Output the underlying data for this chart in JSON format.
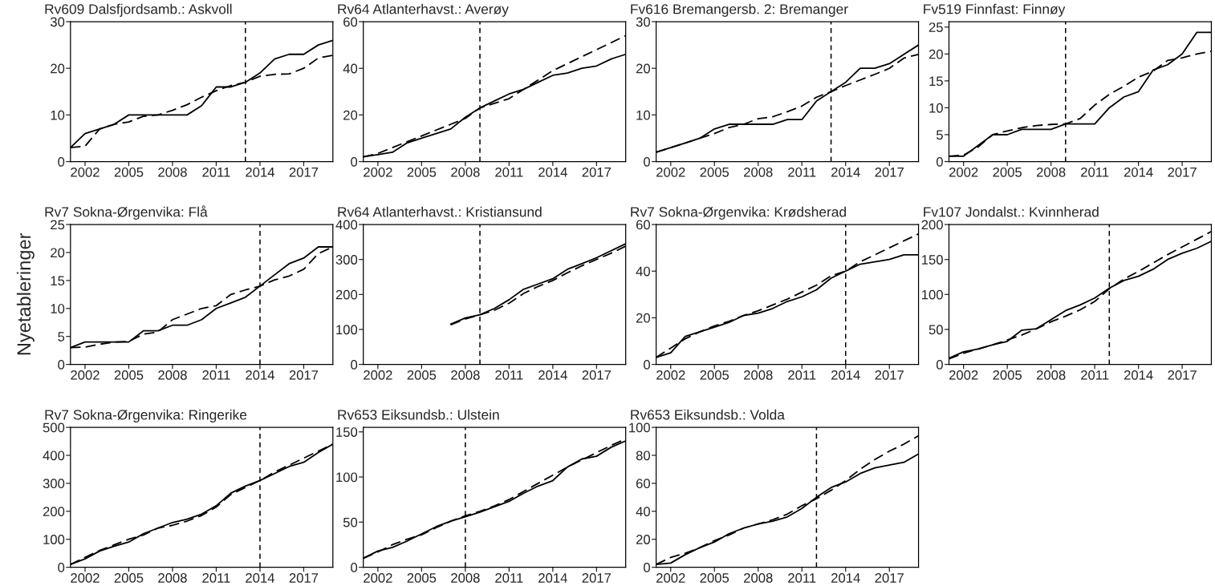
{
  "chart_data": [
    {
      "type": "line",
      "title": "Rv609 Dalsfjordsamb.: Askvoll",
      "x": [
        2001,
        2002,
        2003,
        2004,
        2005,
        2006,
        2007,
        2008,
        2009,
        2010,
        2011,
        2012,
        2013,
        2014,
        2015,
        2016,
        2017,
        2018,
        2019
      ],
      "xlim": [
        2001,
        2019
      ],
      "xticks": [
        2002,
        2005,
        2008,
        2011,
        2014,
        2017
      ],
      "ylim": [
        0,
        30
      ],
      "yticks": [
        0,
        10,
        20,
        30
      ],
      "series": [
        {
          "color": "#000000",
          "line_style": "solid",
          "values": [
            3,
            6,
            7,
            8,
            10,
            10,
            10,
            10,
            10,
            12,
            16,
            16,
            17,
            19,
            22,
            23,
            23,
            25,
            26
          ]
        },
        {
          "color": "#000000",
          "line_style": "dashed",
          "values": [
            3,
            3.3,
            7,
            8,
            8.5,
            9.7,
            10,
            11,
            12.2,
            13.8,
            15.2,
            16.3,
            17,
            18.3,
            18.7,
            18.8,
            20,
            22.2,
            22.8
          ]
        }
      ],
      "ref_lines": [
        {
          "axis": "x",
          "value": 2013,
          "line_style": "dashed",
          "color": "#000000"
        }
      ]
    },
    {
      "type": "line",
      "title": "Rv64 Atlanterhavst.: Averøy",
      "x": [
        2001,
        2002,
        2003,
        2004,
        2005,
        2006,
        2007,
        2008,
        2009,
        2010,
        2011,
        2012,
        2013,
        2014,
        2015,
        2016,
        2017,
        2018,
        2019
      ],
      "xlim": [
        2001,
        2019
      ],
      "xticks": [
        2002,
        2005,
        2008,
        2011,
        2014,
        2017
      ],
      "ylim": [
        0,
        60
      ],
      "yticks": [
        0,
        20,
        40,
        60
      ],
      "series": [
        {
          "color": "#000000",
          "line_style": "solid",
          "values": [
            2,
            3,
            4,
            8,
            10,
            12,
            14,
            19,
            23,
            26,
            29,
            31,
            34,
            37,
            38,
            40,
            41,
            44,
            46
          ]
        },
        {
          "color": "#000000",
          "line_style": "dashed",
          "values": [
            2,
            3.5,
            6,
            8.5,
            11,
            13.5,
            16,
            18.5,
            23,
            25,
            27,
            31,
            35,
            39,
            42,
            45,
            48,
            51,
            54
          ]
        }
      ],
      "ref_lines": [
        {
          "axis": "x",
          "value": 2009,
          "line_style": "dashed",
          "color": "#000000"
        }
      ]
    },
    {
      "type": "line",
      "title": "Fv616 Bremangersb. 2: Bremanger",
      "x": [
        2001,
        2002,
        2003,
        2004,
        2005,
        2006,
        2007,
        2008,
        2009,
        2010,
        2011,
        2012,
        2013,
        2014,
        2015,
        2016,
        2017,
        2018,
        2019
      ],
      "xlim": [
        2001,
        2019
      ],
      "xticks": [
        2002,
        2005,
        2008,
        2011,
        2014,
        2017
      ],
      "ylim": [
        0,
        30
      ],
      "yticks": [
        0,
        10,
        20,
        30
      ],
      "series": [
        {
          "color": "#000000",
          "line_style": "solid",
          "values": [
            2,
            3,
            4,
            5,
            7,
            8,
            8,
            8,
            8,
            9,
            9,
            13,
            15,
            17,
            20,
            20,
            21,
            23,
            25
          ]
        },
        {
          "color": "#000000",
          "line_style": "dashed",
          "values": [
            2,
            3,
            4,
            5,
            6,
            7.3,
            8,
            9.2,
            9.6,
            10.7,
            11.9,
            13.8,
            15,
            16.3,
            17.5,
            18.7,
            20,
            22.2,
            23
          ]
        }
      ],
      "ref_lines": [
        {
          "axis": "x",
          "value": 2013,
          "line_style": "dashed",
          "color": "#000000"
        }
      ]
    },
    {
      "type": "line",
      "title": "Fv519 Finnfast: Finnøy",
      "x": [
        2001,
        2002,
        2003,
        2004,
        2005,
        2006,
        2007,
        2008,
        2009,
        2010,
        2011,
        2012,
        2013,
        2014,
        2015,
        2016,
        2017,
        2018,
        2019
      ],
      "xlim": [
        2001,
        2019
      ],
      "xticks": [
        2002,
        2005,
        2008,
        2011,
        2014,
        2017
      ],
      "ylim": [
        0,
        26
      ],
      "yticks": [
        0,
        5,
        10,
        15,
        20,
        25
      ],
      "series": [
        {
          "color": "#000000",
          "line_style": "solid",
          "values": [
            1,
            1,
            3,
            5,
            5,
            6,
            6,
            6,
            7,
            7,
            7,
            10,
            12,
            13,
            17,
            18,
            20,
            24,
            24
          ]
        },
        {
          "color": "#000000",
          "line_style": "dashed",
          "values": [
            1,
            1.2,
            2.7,
            5,
            5.7,
            6.3,
            6.7,
            6.9,
            7,
            8,
            10.5,
            12.5,
            14,
            15.7,
            16.8,
            18.8,
            19.3,
            20,
            20.5
          ]
        }
      ],
      "ref_lines": [
        {
          "axis": "x",
          "value": 2009,
          "line_style": "dashed",
          "color": "#000000"
        }
      ]
    },
    {
      "type": "line",
      "title": "Rv7 Sokna-Ørgenvika: Flå",
      "ylabel": "Nyetableringer",
      "x": [
        2001,
        2002,
        2003,
        2004,
        2005,
        2006,
        2007,
        2008,
        2009,
        2010,
        2011,
        2012,
        2013,
        2014,
        2015,
        2016,
        2017,
        2018,
        2019
      ],
      "xlim": [
        2001,
        2019
      ],
      "xticks": [
        2002,
        2005,
        2008,
        2011,
        2014,
        2017
      ],
      "ylim": [
        0,
        25
      ],
      "yticks": [
        0,
        5,
        10,
        15,
        20,
        25
      ],
      "series": [
        {
          "color": "#000000",
          "line_style": "solid",
          "values": [
            3,
            4,
            4,
            4,
            4,
            6,
            6,
            7,
            7,
            8,
            10,
            11,
            12,
            14,
            16,
            18,
            19,
            21,
            21
          ]
        },
        {
          "color": "#000000",
          "line_style": "dashed",
          "values": [
            3,
            3.1,
            3.6,
            4,
            4.1,
            5.4,
            5.8,
            8,
            9,
            10,
            10.5,
            12.5,
            13.3,
            14,
            15.1,
            15.8,
            17,
            19.8,
            21
          ]
        }
      ],
      "ref_lines": [
        {
          "axis": "x",
          "value": 2014,
          "line_style": "dashed",
          "color": "#000000"
        }
      ]
    },
    {
      "type": "line",
      "title": "Rv64 Atlanterhavst.: Kristiansund",
      "xlim": [
        2001,
        2019
      ],
      "xticks": [
        2002,
        2005,
        2008,
        2011,
        2014,
        2017
      ],
      "ylim": [
        0,
        400
      ],
      "yticks": [
        0,
        100,
        200,
        300,
        400
      ],
      "series": [
        {
          "color": "#000000",
          "line_style": "solid",
          "x": [
            2007,
            2008,
            2009,
            2010,
            2011,
            2012,
            2013,
            2014,
            2015,
            2016,
            2017,
            2018,
            2019
          ],
          "values": [
            115,
            133,
            142,
            160,
            185,
            215,
            230,
            245,
            272,
            288,
            305,
            325,
            345
          ]
        },
        {
          "color": "#000000",
          "line_style": "dashed",
          "x": [
            2007,
            2008,
            2009,
            2010,
            2011,
            2012,
            2013,
            2014,
            2015,
            2016,
            2017,
            2018,
            2019
          ],
          "values": [
            113,
            130,
            142,
            155,
            175,
            203,
            223,
            240,
            262,
            282,
            300,
            318,
            338
          ]
        }
      ],
      "ref_lines": [
        {
          "axis": "x",
          "value": 2009,
          "line_style": "dashed",
          "color": "#000000"
        }
      ]
    },
    {
      "type": "line",
      "title": "Rv7 Sokna-Ørgenvika: Krødsherad",
      "x": [
        2001,
        2002,
        2003,
        2004,
        2005,
        2006,
        2007,
        2008,
        2009,
        2010,
        2011,
        2012,
        2013,
        2014,
        2015,
        2016,
        2017,
        2018,
        2019
      ],
      "xlim": [
        2001,
        2019
      ],
      "xticks": [
        2002,
        2005,
        2008,
        2011,
        2014,
        2017
      ],
      "ylim": [
        0,
        60
      ],
      "yticks": [
        0,
        20,
        40,
        60
      ],
      "series": [
        {
          "color": "#000000",
          "line_style": "solid",
          "values": [
            3,
            5,
            12,
            14,
            16,
            18,
            21,
            22,
            24,
            27,
            29,
            32,
            37,
            40,
            43,
            44,
            45,
            47,
            47
          ]
        },
        {
          "color": "#000000",
          "line_style": "dashed",
          "values": [
            3,
            7,
            11,
            14,
            16.5,
            18.5,
            21,
            23,
            25.5,
            28,
            31,
            34,
            38,
            40,
            44,
            47,
            50,
            53,
            56
          ]
        }
      ],
      "ref_lines": [
        {
          "axis": "x",
          "value": 2014,
          "line_style": "dashed",
          "color": "#000000"
        }
      ]
    },
    {
      "type": "line",
      "title": "Fv107 Jondalst.: Kvinnherad",
      "x": [
        2001,
        2002,
        2003,
        2004,
        2005,
        2006,
        2007,
        2008,
        2009,
        2010,
        2011,
        2012,
        2013,
        2014,
        2015,
        2016,
        2017,
        2018,
        2019
      ],
      "xlim": [
        2001,
        2019
      ],
      "xticks": [
        2002,
        2005,
        2008,
        2011,
        2014,
        2017
      ],
      "ylim": [
        0,
        200
      ],
      "yticks": [
        0,
        50,
        100,
        150,
        200
      ],
      "series": [
        {
          "color": "#000000",
          "line_style": "solid",
          "values": [
            9,
            18,
            22,
            28,
            33,
            49,
            51,
            64,
            77,
            85,
            95,
            109,
            120,
            126,
            136,
            150,
            159,
            166,
            176
          ]
        },
        {
          "color": "#000000",
          "line_style": "dashed",
          "values": [
            8,
            16,
            22,
            28,
            35,
            42,
            51,
            61,
            69,
            78,
            90,
            108,
            122,
            133,
            145,
            157,
            168,
            179,
            190
          ]
        }
      ],
      "ref_lines": [
        {
          "axis": "x",
          "value": 2012,
          "line_style": "dashed",
          "color": "#000000"
        }
      ]
    },
    {
      "type": "line",
      "title": "Rv7 Sokna-Ørgenvika: Ringerike",
      "x": [
        2001,
        2002,
        2003,
        2004,
        2005,
        2006,
        2007,
        2008,
        2009,
        2010,
        2011,
        2012,
        2013,
        2014,
        2015,
        2016,
        2017,
        2018,
        2019
      ],
      "xlim": [
        2001,
        2019
      ],
      "xticks": [
        2002,
        2005,
        2008,
        2011,
        2014,
        2017
      ],
      "ylim": [
        0,
        500
      ],
      "yticks": [
        0,
        100,
        200,
        300,
        400,
        500
      ],
      "series": [
        {
          "color": "#000000",
          "line_style": "solid",
          "values": [
            10,
            30,
            58,
            75,
            90,
            120,
            140,
            160,
            172,
            190,
            220,
            265,
            290,
            310,
            335,
            360,
            375,
            410,
            440
          ]
        },
        {
          "color": "#000000",
          "line_style": "dashed",
          "values": [
            10,
            35,
            60,
            80,
            100,
            115,
            140,
            150,
            165,
            185,
            215,
            260,
            285,
            310,
            340,
            365,
            390,
            415,
            440
          ]
        }
      ],
      "ref_lines": [
        {
          "axis": "x",
          "value": 2014,
          "line_style": "dashed",
          "color": "#000000"
        }
      ]
    },
    {
      "type": "line",
      "title": "Rv653 Eiksundsb.: Ulstein",
      "x": [
        2001,
        2002,
        2003,
        2004,
        2005,
        2006,
        2007,
        2008,
        2009,
        2010,
        2011,
        2012,
        2013,
        2014,
        2015,
        2016,
        2017,
        2018,
        2019
      ],
      "xlim": [
        2001,
        2019
      ],
      "xticks": [
        2002,
        2005,
        2008,
        2011,
        2014,
        2017
      ],
      "ylim": [
        0,
        155
      ],
      "yticks": [
        0,
        50,
        100,
        150
      ],
      "series": [
        {
          "color": "#000000",
          "line_style": "solid",
          "values": [
            10,
            18,
            22,
            29,
            37,
            45,
            51,
            56,
            61,
            67,
            73,
            82,
            90,
            96,
            111,
            120,
            123,
            133,
            140
          ]
        },
        {
          "color": "#000000",
          "line_style": "dashed",
          "values": [
            10,
            17,
            25,
            31,
            36,
            44,
            51,
            57,
            62,
            68,
            75,
            84,
            93,
            102,
            111,
            119,
            127,
            135,
            142
          ]
        }
      ],
      "ref_lines": [
        {
          "axis": "x",
          "value": 2008,
          "line_style": "dashed",
          "color": "#000000"
        }
      ]
    },
    {
      "type": "line",
      "title": "Rv653 Eiksundsb.: Volda",
      "x": [
        2001,
        2002,
        2003,
        2004,
        2005,
        2006,
        2007,
        2008,
        2009,
        2010,
        2011,
        2012,
        2013,
        2014,
        2015,
        2016,
        2017,
        2018,
        2019
      ],
      "xlim": [
        2001,
        2019
      ],
      "xticks": [
        2002,
        2005,
        2008,
        2011,
        2014,
        2017
      ],
      "ylim": [
        0,
        100
      ],
      "yticks": [
        0,
        20,
        40,
        60,
        80,
        100
      ],
      "series": [
        {
          "color": "#000000",
          "line_style": "solid",
          "values": [
            2,
            3,
            9,
            14,
            18,
            24,
            28,
            31,
            33,
            36,
            42,
            50,
            57,
            61,
            67,
            71,
            73,
            75,
            81
          ]
        },
        {
          "color": "#000000",
          "line_style": "dashed",
          "values": [
            2,
            7,
            10,
            14,
            19,
            23,
            28,
            31,
            34,
            38,
            44,
            49,
            55,
            62,
            70,
            77,
            83,
            88,
            94
          ]
        }
      ],
      "ref_lines": [
        {
          "axis": "x",
          "value": 2012,
          "line_style": "dashed",
          "color": "#000000"
        }
      ]
    }
  ]
}
